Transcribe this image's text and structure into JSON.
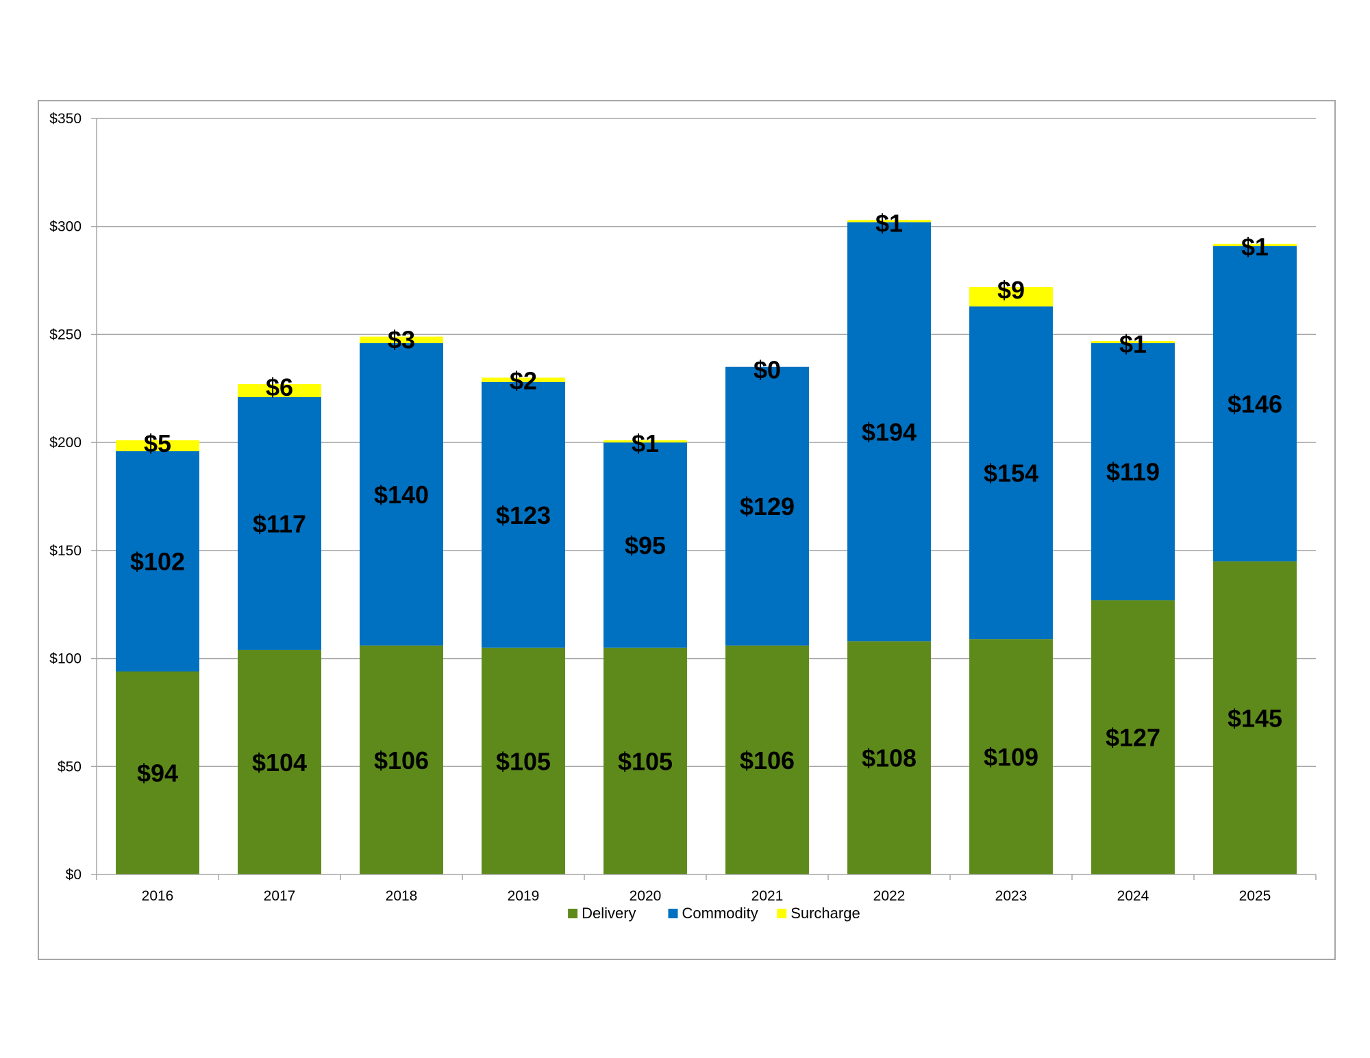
{
  "chart_data": {
    "type": "bar",
    "stacked": true,
    "categories": [
      "2016",
      "2017",
      "2018",
      "2019",
      "2020",
      "2021",
      "2022",
      "2023",
      "2024",
      "2025"
    ],
    "series": [
      {
        "name": "Delivery",
        "color": "#5e8a1b",
        "values": [
          94,
          104,
          106,
          105,
          105,
          106,
          108,
          109,
          127,
          145
        ],
        "labels": [
          "$94",
          "$104",
          "$106",
          "$105",
          "$105",
          "$106",
          "$108",
          "$109",
          "$127",
          "$145"
        ]
      },
      {
        "name": "Commodity",
        "color": "#0070c0",
        "values": [
          102,
          117,
          140,
          123,
          95,
          129,
          194,
          154,
          119,
          146
        ],
        "labels": [
          "$102",
          "$117",
          "$140",
          "$123",
          "$95",
          "$129",
          "$194",
          "$154",
          "$119",
          "$146"
        ]
      },
      {
        "name": "Surcharge",
        "color": "#ffff00",
        "values": [
          5,
          6,
          3,
          2,
          1,
          0,
          1,
          9,
          1,
          1
        ],
        "labels": [
          "$5",
          "$6",
          "$3",
          "$2",
          "$1",
          "$0",
          "$1",
          "$9",
          "$1",
          "$1"
        ]
      }
    ],
    "ylim": [
      0,
      350
    ],
    "yticks": [
      0,
      50,
      100,
      150,
      200,
      250,
      300,
      350
    ],
    "ytick_labels": [
      "$0",
      "$50",
      "$100",
      "$150",
      "$200",
      "$250",
      "$300",
      "$350"
    ],
    "grid": true,
    "legend_position": "bottom-center",
    "gridline_color": "#a6a6a6"
  }
}
